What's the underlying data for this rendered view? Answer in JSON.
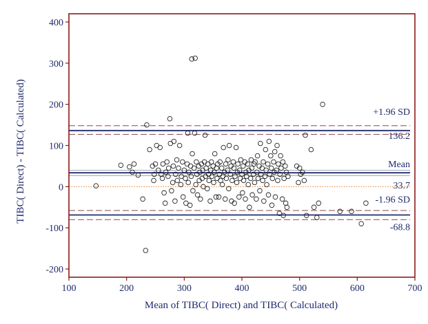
{
  "chart_data": {
    "type": "scatter",
    "title": "",
    "xlabel": "Mean of TIBC( Direct) and TIBC( Calculated)",
    "ylabel": "TIBC( Direct) - TIBC( Calculated)",
    "xlim": [
      100,
      700
    ],
    "ylim": [
      -220,
      420
    ],
    "xticks": [
      100,
      200,
      300,
      400,
      500,
      600,
      700
    ],
    "yticks": [
      -200,
      -100,
      0,
      100,
      200,
      300,
      400
    ],
    "grid": false,
    "reference_lines": {
      "mean": {
        "label": "Mean",
        "value_label": "33.7",
        "value": 33.7
      },
      "upper": {
        "label": "+1.96 SD",
        "value_label": "136.2",
        "value": 136.2
      },
      "lower": {
        "label": "-1.96 SD",
        "value_label": "-68.8",
        "value": -68.8
      },
      "zero": 0,
      "mean_ci": [
        27,
        40
      ],
      "upper_ci": [
        127,
        148
      ],
      "lower_ci": [
        -80,
        -58
      ]
    },
    "colors": {
      "frame": "#8b1a1a",
      "ink": "#1f2a6b",
      "zero_line": "#e08030",
      "ci_dash": "#8a4a4a",
      "marker": "#222222"
    },
    "points": [
      [
        147,
        2
      ],
      [
        190,
        52
      ],
      [
        205,
        48
      ],
      [
        210,
        35
      ],
      [
        213,
        55
      ],
      [
        220,
        28
      ],
      [
        228,
        -30
      ],
      [
        233,
        -155
      ],
      [
        235,
        150
      ],
      [
        240,
        90
      ],
      [
        245,
        50
      ],
      [
        247,
        15
      ],
      [
        248,
        30
      ],
      [
        250,
        55
      ],
      [
        252,
        100
      ],
      [
        255,
        40
      ],
      [
        258,
        95
      ],
      [
        260,
        30
      ],
      [
        262,
        20
      ],
      [
        263,
        55
      ],
      [
        265,
        -15
      ],
      [
        267,
        -40
      ],
      [
        268,
        35
      ],
      [
        270,
        60
      ],
      [
        272,
        25
      ],
      [
        273,
        45
      ],
      [
        275,
        165
      ],
      [
        276,
        105
      ],
      [
        278,
        -10
      ],
      [
        280,
        10
      ],
      [
        281,
        50
      ],
      [
        282,
        110
      ],
      [
        284,
        -35
      ],
      [
        285,
        30
      ],
      [
        287,
        65
      ],
      [
        288,
        15
      ],
      [
        290,
        45
      ],
      [
        292,
        100
      ],
      [
        294,
        5
      ],
      [
        295,
        25
      ],
      [
        297,
        60
      ],
      [
        298,
        -25
      ],
      [
        300,
        40
      ],
      [
        302,
        20
      ],
      [
        303,
        -40
      ],
      [
        305,
        55
      ],
      [
        306,
        130
      ],
      [
        307,
        10
      ],
      [
        308,
        35
      ],
      [
        310,
        -45
      ],
      [
        311,
        50
      ],
      [
        312,
        25
      ],
      [
        313,
        310
      ],
      [
        314,
        80
      ],
      [
        315,
        -10
      ],
      [
        317,
        45
      ],
      [
        318,
        130
      ],
      [
        319,
        312
      ],
      [
        320,
        5
      ],
      [
        321,
        60
      ],
      [
        322,
        30
      ],
      [
        323,
        -20
      ],
      [
        325,
        50
      ],
      [
        326,
        15
      ],
      [
        327,
        35
      ],
      [
        328,
        -30
      ],
      [
        330,
        55
      ],
      [
        331,
        20
      ],
      [
        332,
        40
      ],
      [
        333,
        0
      ],
      [
        335,
        60
      ],
      [
        336,
        125
      ],
      [
        337,
        25
      ],
      [
        338,
        45
      ],
      [
        340,
        -5
      ],
      [
        341,
        55
      ],
      [
        342,
        30
      ],
      [
        343,
        15
      ],
      [
        345,
        -35
      ],
      [
        346,
        40
      ],
      [
        347,
        60
      ],
      [
        348,
        25
      ],
      [
        350,
        50
      ],
      [
        351,
        10
      ],
      [
        352,
        35
      ],
      [
        353,
        80
      ],
      [
        355,
        -25
      ],
      [
        356,
        45
      ],
      [
        357,
        20
      ],
      [
        358,
        55
      ],
      [
        360,
        -25
      ],
      [
        361,
        30
      ],
      [
        362,
        60
      ],
      [
        363,
        15
      ],
      [
        365,
        45
      ],
      [
        366,
        5
      ],
      [
        367,
        25
      ],
      [
        368,
        95
      ],
      [
        370,
        35
      ],
      [
        371,
        -30
      ],
      [
        372,
        55
      ],
      [
        373,
        20
      ],
      [
        375,
        40
      ],
      [
        376,
        65
      ],
      [
        377,
        -5
      ],
      [
        378,
        100
      ],
      [
        380,
        30
      ],
      [
        381,
        50
      ],
      [
        382,
        -35
      ],
      [
        383,
        15
      ],
      [
        385,
        60
      ],
      [
        386,
        45
      ],
      [
        387,
        -40
      ],
      [
        388,
        25
      ],
      [
        390,
        95
      ],
      [
        391,
        10
      ],
      [
        392,
        35
      ],
      [
        393,
        55
      ],
      [
        395,
        -25
      ],
      [
        396,
        40
      ],
      [
        397,
        20
      ],
      [
        398,
        65
      ],
      [
        400,
        30
      ],
      [
        401,
        -15
      ],
      [
        402,
        50
      ],
      [
        403,
        15
      ],
      [
        405,
        60
      ],
      [
        406,
        -30
      ],
      [
        407,
        35
      ],
      [
        408,
        25
      ],
      [
        410,
        55
      ],
      [
        411,
        5
      ],
      [
        412,
        40
      ],
      [
        413,
        -50
      ],
      [
        415,
        20
      ],
      [
        416,
        65
      ],
      [
        417,
        45
      ],
      [
        418,
        -20
      ],
      [
        420,
        30
      ],
      [
        421,
        55
      ],
      [
        422,
        10
      ],
      [
        423,
        60
      ],
      [
        425,
        -30
      ],
      [
        426,
        35
      ],
      [
        427,
        75
      ],
      [
        428,
        20
      ],
      [
        430,
        50
      ],
      [
        431,
        -10
      ],
      [
        432,
        105
      ],
      [
        433,
        30
      ],
      [
        435,
        45
      ],
      [
        436,
        15
      ],
      [
        437,
        60
      ],
      [
        438,
        -35
      ],
      [
        440,
        25
      ],
      [
        441,
        90
      ],
      [
        442,
        40
      ],
      [
        443,
        5
      ],
      [
        445,
        55
      ],
      [
        446,
        -20
      ],
      [
        447,
        110
      ],
      [
        448,
        30
      ],
      [
        450,
        75
      ],
      [
        451,
        45
      ],
      [
        452,
        -45
      ],
      [
        453,
        20
      ],
      [
        455,
        60
      ],
      [
        456,
        35
      ],
      [
        457,
        85
      ],
      [
        458,
        -25
      ],
      [
        460,
        40
      ],
      [
        461,
        100
      ],
      [
        462,
        15
      ],
      [
        463,
        55
      ],
      [
        465,
        -65
      ],
      [
        466,
        30
      ],
      [
        467,
        75
      ],
      [
        468,
        45
      ],
      [
        470,
        -30
      ],
      [
        471,
        60
      ],
      [
        472,
        -70
      ],
      [
        473,
        20
      ],
      [
        475,
        50
      ],
      [
        476,
        -40
      ],
      [
        477,
        35
      ],
      [
        478,
        -50
      ],
      [
        480,
        25
      ],
      [
        495,
        50
      ],
      [
        498,
        10
      ],
      [
        500,
        45
      ],
      [
        502,
        30
      ],
      [
        505,
        35
      ],
      [
        508,
        15
      ],
      [
        510,
        125
      ],
      [
        512,
        -70
      ],
      [
        520,
        90
      ],
      [
        525,
        -50
      ],
      [
        530,
        -75
      ],
      [
        533,
        -40
      ],
      [
        540,
        200
      ],
      [
        570,
        -60
      ],
      [
        590,
        -60
      ],
      [
        607,
        -90
      ],
      [
        615,
        -40
      ]
    ]
  }
}
